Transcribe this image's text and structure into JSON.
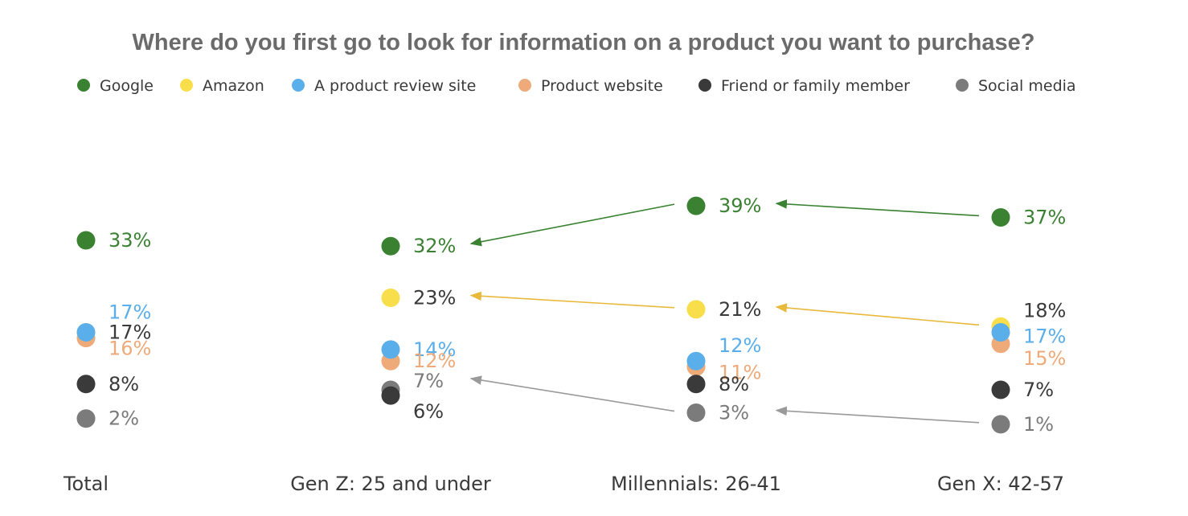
{
  "chart_data": {
    "type": "scatter",
    "title": "Where do you first go to look for information on a product you want to purchase?",
    "categories": [
      "Total",
      "Gen Z: 25 and under",
      "Millennials: 26-41",
      "Gen X: 42-57"
    ],
    "series": [
      {
        "name": "Google",
        "color": "#3a8232",
        "values": [
          33,
          32,
          39,
          37
        ],
        "labels": [
          "33%",
          "32%",
          "39%",
          "37%"
        ],
        "label_color": "#3a8232"
      },
      {
        "name": "Amazon",
        "color": "#f9de4b",
        "values": [
          17,
          23,
          21,
          18
        ],
        "labels": [
          "17%",
          "23%",
          "21%",
          "18%"
        ],
        "label_color": "#3a3a3a"
      },
      {
        "name": "A product review site",
        "color": "#5aaeea",
        "values": [
          17,
          14,
          12,
          17
        ],
        "labels": [
          "17%",
          "14%",
          "12%",
          "17%"
        ],
        "label_color": "#5aaeea"
      },
      {
        "name": "Product website",
        "color": "#eeaa78",
        "values": [
          16,
          12,
          11,
          15
        ],
        "labels": [
          "16%",
          "12%",
          "11%",
          "15%"
        ],
        "label_color": "#eeaa78"
      },
      {
        "name": "Friend or family member",
        "color": "#3a3a3a",
        "values": [
          8,
          6,
          8,
          7
        ],
        "labels": [
          "8%",
          "6%",
          "8%",
          "7%"
        ],
        "label_color": "#3a3a3a"
      },
      {
        "name": "Social media",
        "color": "#7b7b7b",
        "values": [
          2,
          7,
          3,
          1
        ],
        "labels": [
          "2%",
          "7%",
          "3%",
          "1%"
        ],
        "label_color": "#7b7b7b"
      }
    ],
    "arrows": [
      {
        "series": "Google",
        "path": [
          "Gen X: 42-57",
          "Millennials: 26-41",
          "Gen Z: 25 and under"
        ],
        "color": "#3a8232"
      },
      {
        "series": "Amazon",
        "path": [
          "Gen X: 42-57",
          "Millennials: 26-41",
          "Gen Z: 25 and under"
        ],
        "color": "#e8b93a"
      },
      {
        "series": "Social media",
        "path": [
          "Gen X: 42-57",
          "Millennials: 26-41",
          "Gen Z: 25 and under"
        ],
        "color": "#9a9a9a"
      }
    ],
    "ylim": [
      0,
      45
    ],
    "legend_position": "top",
    "grid": false,
    "xlabel": "",
    "ylabel": ""
  }
}
